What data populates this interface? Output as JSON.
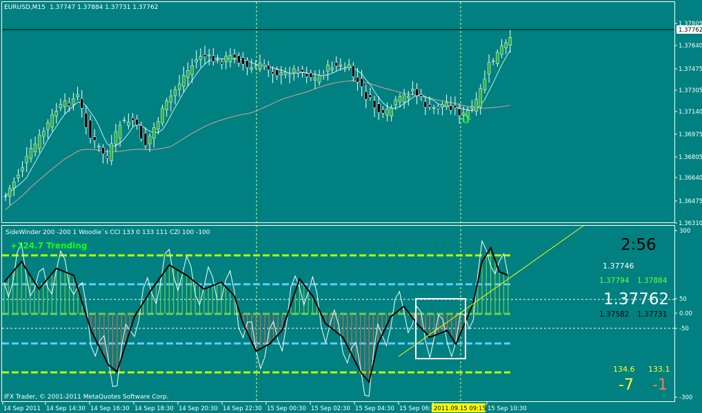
{
  "colors": {
    "background": "#008080",
    "bull_candle": "#2fb33d",
    "bear_candle": "#000000",
    "wick": "#ffffff",
    "fast_ma": "#bfeff7",
    "slow_ma": "#d9a19a",
    "current_price_line": "#000000",
    "separator": "#ffffff",
    "grid_dashed": "#ffffff",
    "vline_marker": "#ffff00",
    "cci_line": "#000000",
    "turbo_line": "#ffffff",
    "histo_pos": "#6fd34a",
    "histo_neg": "#d86a4a",
    "trend_text": "#17ff17",
    "level_green": "#b6ff00",
    "level_blue": "#66ccff",
    "level_red": "#d86a4a",
    "arrow": "#17ff17",
    "trendline": "#ffff00"
  },
  "main_chart": {
    "symbol_timeframe": "EURUSD,M15",
    "ohlc": "1.37747 1.37884 1.37731 1.37762",
    "current_price": "1.37762",
    "up_arrow_icon": "up-arrow-icon",
    "price_ticks": [
      "1.37805",
      "1.37640",
      "1.37475",
      "1.37305",
      "1.37140",
      "1.36975",
      "1.36805",
      "1.36640",
      "1.36475",
      "1.36310"
    ]
  },
  "indicator": {
    "title": "SideWinder 200 -200 1  Woodie`s CCI 133 0 133 111  CZI 100 -100",
    "trend_label": "+124.7 Trending",
    "timer": "2:56",
    "price_upper": "1.37746",
    "bid_high_1": "1.37794",
    "bid_high_2": "1.37884",
    "current_price_big": "1.37762",
    "bid_low_1": "1.37582",
    "bid_low_2": "1.37731",
    "cci_val_1": "134.6",
    "cci_val_2": "133.1",
    "delta_1": "-7",
    "delta_2": "-1",
    "level_ticks": [
      "300",
      "50",
      "0.00",
      "-50",
      "-300"
    ],
    "copyright": "IFX Trader, © 2001-2011 MetaQuotes Software Corp."
  },
  "time_axis": {
    "labels": [
      "14 Sep 2011",
      "14 Sep 14:30",
      "14 Sep 16:30",
      "14 Sep 18:30",
      "14 Sep 20:30",
      "14 Sep 22:30",
      "15 Sep 00:30",
      "15 Sep 02:30",
      "15 Sep 04:30",
      "15 Sep 06:3",
      "2011.09.15 09:15",
      "15 Sep 10:30"
    ]
  }
}
